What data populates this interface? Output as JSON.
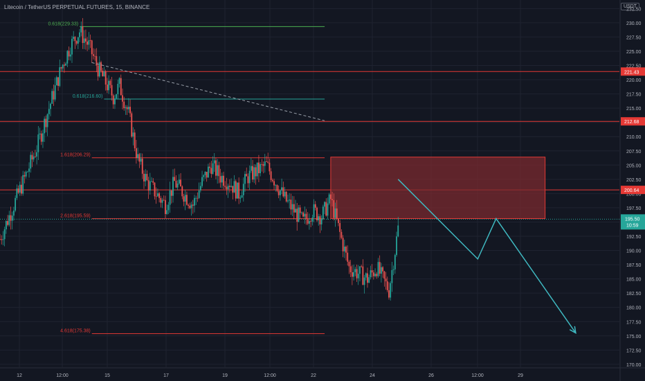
{
  "header": {
    "title": "Litecoin / TetherUS PERPETUAL FUTURES, 15, BINANCE"
  },
  "currency_badge": "USDT",
  "colors": {
    "background": "#131722",
    "grid": "#1f2330",
    "axis_text": "#b2b5be",
    "up_candle": "#26a69a",
    "down_candle": "#ef5350",
    "red_line": "#e53935",
    "green_line": "#4caf50",
    "teal_line": "#26a69a",
    "arrow": "#3fb8c0",
    "zone_fill": "#7a2a2f",
    "last_price": "#26a69a"
  },
  "chart_data": {
    "type": "candlestick",
    "title": "Litecoin / TetherUS PERPETUAL FUTURES, 15, BINANCE",
    "x_tick_labels": [
      "12",
      "12:00",
      "15",
      "17",
      "19",
      "12:00",
      "22",
      "24",
      "26",
      "12:00",
      "29"
    ],
    "y_tick_labels": [
      "170.00",
      "172.50",
      "175.00",
      "177.50",
      "180.00",
      "182.50",
      "185.00",
      "187.50",
      "190.00",
      "192.50",
      "195.00",
      "197.50",
      "200.00",
      "202.50",
      "205.00",
      "207.50",
      "210.00",
      "212.50",
      "215.00",
      "217.50",
      "220.00",
      "222.50",
      "225.00",
      "227.50",
      "230.00",
      "232.50"
    ],
    "ylim": [
      169.5,
      234.0
    ],
    "grid": true,
    "price_path": [
      [
        0,
        192
      ],
      [
        3,
        200
      ],
      [
        6,
        208
      ],
      [
        8,
        215
      ],
      [
        10,
        222
      ],
      [
        11.5,
        226
      ],
      [
        13,
        228.5
      ],
      [
        14.5,
        226
      ],
      [
        16,
        222
      ],
      [
        17.5,
        219
      ],
      [
        18.5,
        217
      ],
      [
        19.5,
        219
      ],
      [
        21,
        214
      ],
      [
        22.5,
        206
      ],
      [
        24,
        202
      ],
      [
        25.5,
        200
      ],
      [
        27,
        198
      ],
      [
        28.5,
        202
      ],
      [
        30,
        200
      ],
      [
        31.5,
        198
      ],
      [
        33,
        202
      ],
      [
        34.5,
        205
      ],
      [
        36,
        203
      ],
      [
        37.5,
        202
      ],
      [
        39,
        200
      ],
      [
        40.5,
        203
      ],
      [
        42,
        204
      ],
      [
        43.5,
        205
      ],
      [
        45,
        202
      ],
      [
        46.5,
        199
      ],
      [
        48,
        197
      ],
      [
        49.5,
        195
      ],
      [
        51,
        197
      ],
      [
        52.5,
        196
      ],
      [
        54,
        199
      ],
      [
        55.5,
        193
      ],
      [
        57,
        187
      ],
      [
        58.5,
        186
      ],
      [
        60,
        185
      ],
      [
        61.5,
        187
      ],
      [
        62.5,
        185
      ],
      [
        63.5,
        183
      ],
      [
        64.5,
        190
      ],
      [
        65.2,
        195.5
      ]
    ],
    "horizontal_levels": [
      {
        "price": 221.43,
        "label": "221.43",
        "color": "#e53935"
      },
      {
        "price": 212.68,
        "label": "212.68",
        "color": "#e53935"
      },
      {
        "price": 200.64,
        "label": "200.64",
        "color": "#e53935"
      }
    ],
    "fib_levels": [
      {
        "label": "0.618(229.33)",
        "price": 229.33,
        "color": "#4caf50",
        "x_from": 13,
        "x_to": 53
      },
      {
        "label": "0.618(216.60)",
        "price": 216.6,
        "color": "#26a69a",
        "x_from": 17,
        "x_to": 53
      },
      {
        "label": "1.618(206.29)",
        "price": 206.29,
        "color": "#e53935",
        "x_from": 15,
        "x_to": 53
      },
      {
        "label": "2.618(195.59)",
        "price": 195.59,
        "color": "#e53935",
        "x_from": 15,
        "x_to": 53
      },
      {
        "label": "4.618(175.38)",
        "price": 175.38,
        "color": "#e53935",
        "x_from": 15,
        "x_to": 53
      }
    ],
    "trend_line": {
      "from": [
        15,
        223
      ],
      "to": [
        53,
        212.8
      ],
      "dashed": true
    },
    "zone": {
      "x_from": 54,
      "x_to": 89,
      "price_from": 195.6,
      "price_to": 206.4
    },
    "projection_path": [
      [
        65,
        202.5
      ],
      [
        78,
        188.5
      ],
      [
        81,
        195.6
      ],
      [
        94,
        175.5
      ]
    ],
    "last_price": {
      "value": "195.50",
      "countdown": "10:59",
      "price": 195.5
    }
  }
}
